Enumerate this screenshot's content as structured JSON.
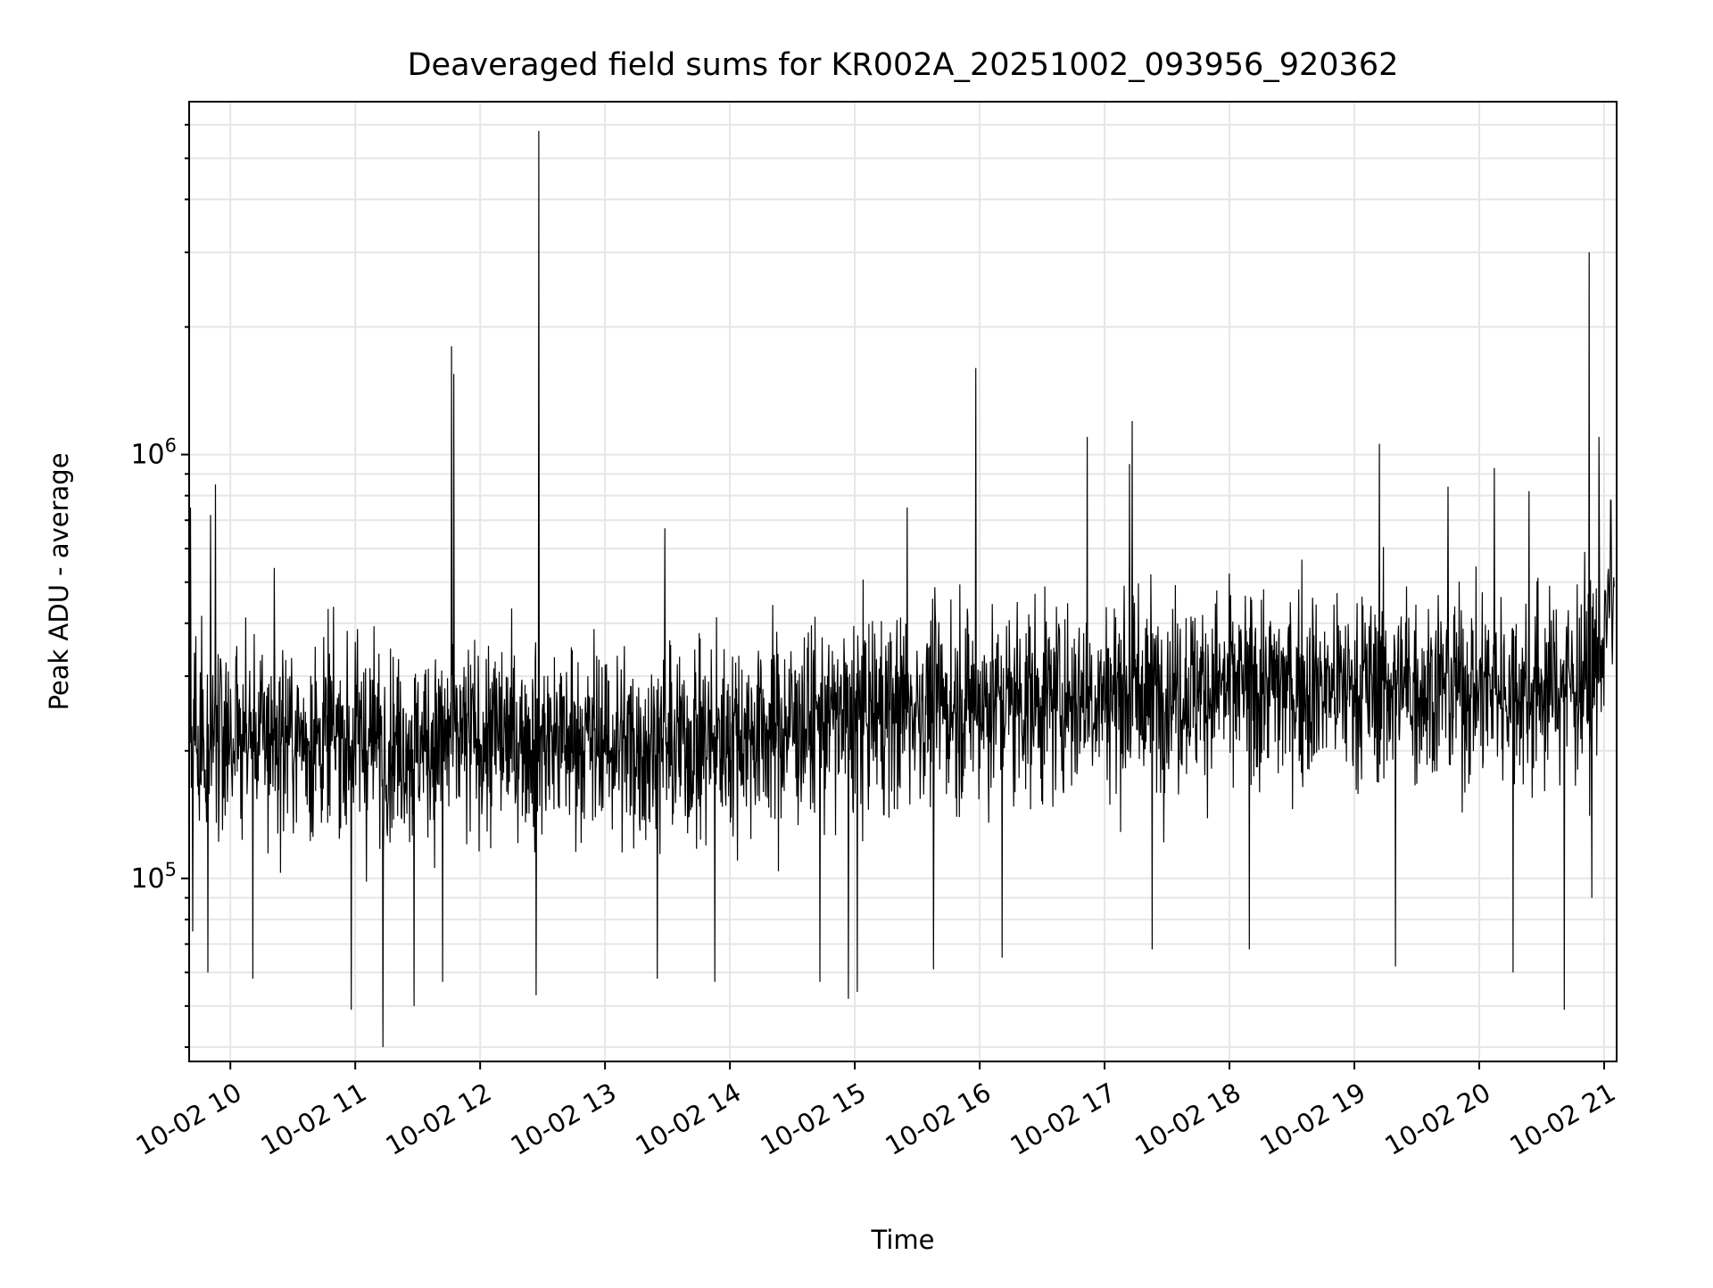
{
  "chart_data": {
    "type": "line",
    "title": "Deaveraged field sums for KR002A_20251002_093956_920362",
    "xlabel": "Time",
    "ylabel": "Peak ADU - average",
    "yscale": "log",
    "ylim": [
      37000,
      6800000
    ],
    "xlim_hours": [
      9.67,
      21.1
    ],
    "x_ticks": [
      {
        "hour": 10,
        "label": "10-02 10"
      },
      {
        "hour": 11,
        "label": "10-02 11"
      },
      {
        "hour": 12,
        "label": "10-02 12"
      },
      {
        "hour": 13,
        "label": "10-02 13"
      },
      {
        "hour": 14,
        "label": "10-02 14"
      },
      {
        "hour": 15,
        "label": "10-02 15"
      },
      {
        "hour": 16,
        "label": "10-02 16"
      },
      {
        "hour": 17,
        "label": "10-02 17"
      },
      {
        "hour": 18,
        "label": "10-02 18"
      },
      {
        "hour": 19,
        "label": "10-02 19"
      },
      {
        "hour": 20,
        "label": "10-02 20"
      },
      {
        "hour": 21,
        "label": "10-02 21"
      }
    ],
    "y_ticks": [
      {
        "value": 100000,
        "base": "10",
        "exp": "5"
      },
      {
        "value": 1000000,
        "base": "10",
        "exp": "6"
      }
    ],
    "grid": true,
    "line_color": "#000000",
    "series": [
      {
        "name": "deaveraged field sum",
        "baseline_anchors": [
          [
            9.67,
            220000
          ],
          [
            10.5,
            215000
          ],
          [
            11.5,
            210000
          ],
          [
            12.5,
            215000
          ],
          [
            13.5,
            205000
          ],
          [
            14.5,
            230000
          ],
          [
            15.5,
            255000
          ],
          [
            16.5,
            265000
          ],
          [
            17.5,
            280000
          ],
          [
            18.5,
            285000
          ],
          [
            19.5,
            285000
          ],
          [
            20.5,
            280000
          ],
          [
            20.9,
            300000
          ],
          [
            21.1,
            480000
          ]
        ],
        "spikes": [
          [
            9.68,
            750000
          ],
          [
            9.84,
            720000
          ],
          [
            9.88,
            850000
          ],
          [
            10.35,
            540000
          ],
          [
            11.77,
            1800000
          ],
          [
            11.79,
            1550000
          ],
          [
            12.47,
            5800000
          ],
          [
            13.48,
            670000
          ],
          [
            15.42,
            750000
          ],
          [
            15.97,
            1600000
          ],
          [
            16.86,
            1100000
          ],
          [
            17.22,
            1200000
          ],
          [
            17.2,
            950000
          ],
          [
            19.2,
            1060000
          ],
          [
            19.75,
            840000
          ],
          [
            20.12,
            930000
          ],
          [
            20.4,
            820000
          ],
          [
            20.88,
            3000000
          ],
          [
            20.96,
            1100000
          ],
          [
            21.05,
            780000
          ]
        ],
        "dips": [
          [
            9.7,
            75000
          ],
          [
            9.82,
            60000
          ],
          [
            10.18,
            58000
          ],
          [
            10.97,
            49000
          ],
          [
            11.22,
            40000
          ],
          [
            11.47,
            50000
          ],
          [
            11.7,
            57000
          ],
          [
            12.45,
            53000
          ],
          [
            13.42,
            58000
          ],
          [
            13.88,
            57000
          ],
          [
            14.72,
            57000
          ],
          [
            14.95,
            52000
          ],
          [
            15.02,
            54000
          ],
          [
            15.63,
            61000
          ],
          [
            16.18,
            65000
          ],
          [
            17.38,
            68000
          ],
          [
            18.16,
            68000
          ],
          [
            19.33,
            62000
          ],
          [
            20.27,
            60000
          ],
          [
            20.68,
            49000
          ],
          [
            20.9,
            90000
          ]
        ]
      }
    ]
  }
}
